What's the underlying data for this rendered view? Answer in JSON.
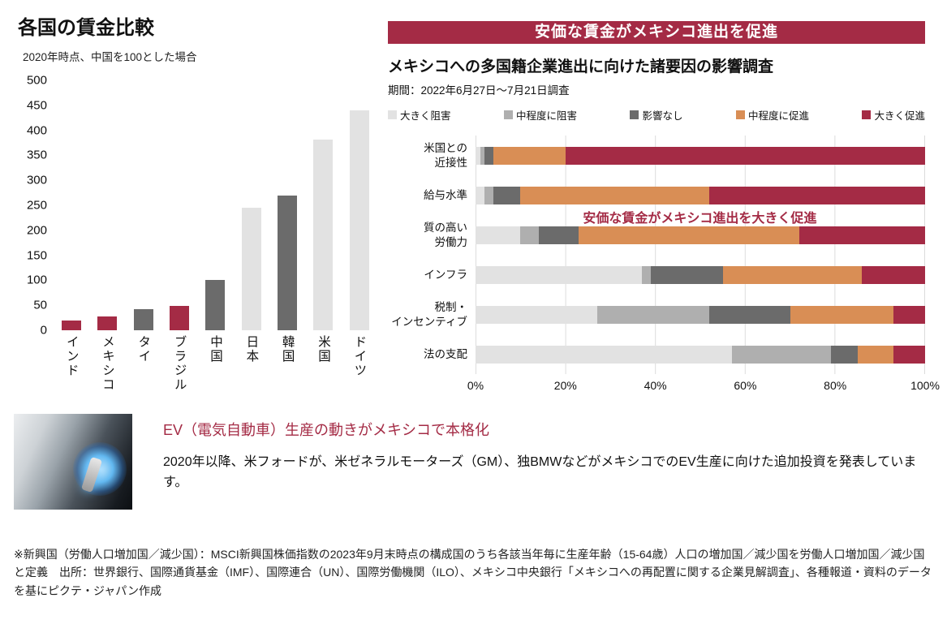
{
  "colors": {
    "dark_red": "#A42B45",
    "orange": "#D98E55",
    "gray_dark": "#6B6B6B",
    "gray_mid": "#AFAFAF",
    "gray_light": "#E2E2E2"
  },
  "chart_data": [
    {
      "type": "bar",
      "title": "各国の賃金比較",
      "subtitle": "2020年時点、中国を100とした場合",
      "categories": [
        "インド",
        "メキシコ",
        "タイ",
        "ブラジル",
        "中国",
        "日本",
        "韓国",
        "米国",
        "ドイツ"
      ],
      "values": [
        20,
        28,
        42,
        48,
        100,
        245,
        270,
        382,
        440
      ],
      "bar_colors": [
        "dark_red",
        "dark_red",
        "gray_dark",
        "dark_red",
        "gray_dark",
        "gray_light",
        "gray_dark",
        "gray_light",
        "gray_light"
      ],
      "ylim": [
        0,
        500
      ],
      "ytick_step": 50,
      "grid": false
    },
    {
      "type": "bar",
      "orientation": "horizontal-stacked-100",
      "banner": "安価な賃金がメキシコ進出を促進",
      "title": "メキシコへの多国籍企業進出に向けた諸要因の影響調査",
      "period": "期間：2022年6月27日～7月21日調査",
      "legend": [
        {
          "label": "大きく阻害",
          "color": "gray_light"
        },
        {
          "label": "中程度に阻害",
          "color": "gray_mid"
        },
        {
          "label": "影響なし",
          "color": "gray_dark"
        },
        {
          "label": "中程度に促進",
          "color": "orange"
        },
        {
          "label": "大きく促進",
          "color": "dark_red"
        }
      ],
      "categories": [
        "米国との\n近接性",
        "給与水準",
        "質の高い\n労働力",
        "インフラ",
        "税制・\nインセンティブ",
        "法の支配"
      ],
      "series": [
        {
          "name": "大きく阻害",
          "color": "gray_light",
          "values": [
            1,
            2,
            10,
            37,
            27,
            57
          ]
        },
        {
          "name": "中程度に阻害",
          "color": "gray_mid",
          "values": [
            1,
            2,
            4,
            2,
            25,
            22
          ]
        },
        {
          "name": "影響なし",
          "color": "gray_dark",
          "values": [
            2,
            6,
            9,
            16,
            18,
            6
          ]
        },
        {
          "name": "中程度に促進",
          "color": "orange",
          "values": [
            16,
            42,
            49,
            31,
            23,
            8
          ]
        },
        {
          "name": "大きく促進",
          "color": "dark_red",
          "values": [
            80,
            48,
            28,
            14,
            7,
            7
          ]
        }
      ],
      "xticks": [
        "0%",
        "20%",
        "40%",
        "60%",
        "80%",
        "100%"
      ],
      "xlim": [
        0,
        100
      ],
      "annotation": "安価な賃金がメキシコ進出を大きく促進",
      "legend_position": "top"
    }
  ],
  "ev_section": {
    "photo": "ev-charging-photo",
    "title": "EV（電気自動車）生産の動きがメキシコで本格化",
    "body": "2020年以降、米フォードが、米ゼネラルモーターズ（GM）、独BMWなどがメキシコでのEV生産に向けた追加投資を発表しています。"
  },
  "footnote": "※新興国（労働人口増加国／減少国）：MSCI新興国株価指数の2023年9月末時点の構成国のうち各該当年毎に生産年齢（15-64歳）人口の増加国／減少国を労働人口増加国／減少国と定義　出所：世界銀行、国際通貨基金（IMF）、国際連合（UN）、国際労働機関（ILO）、メキシコ中央銀行「メキシコへの再配置に関する企業見解調査」、各種報道・資料のデータを基にピクテ・ジャパン作成"
}
